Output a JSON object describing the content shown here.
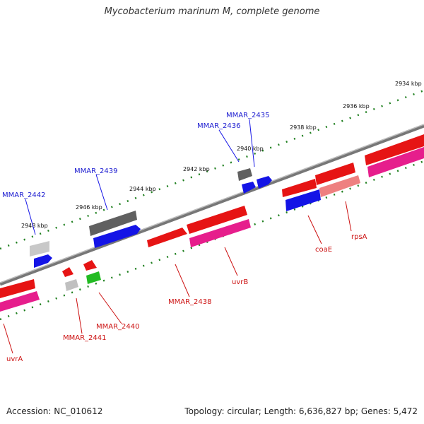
{
  "header": {
    "title": "Mycobacterium marinum M, complete genome"
  },
  "footer": {
    "accession": "Accession: NC_010612",
    "topology": "Topology: circular; Length: 6,636,827 bp; Genes: 5,472"
  },
  "scale": {
    "ticks": [
      "2934 kbp",
      "2936 kbp",
      "2938 kbp",
      "2940 kbp",
      "2942 kbp",
      "2944 kbp",
      "2946 kbp",
      "2948 kbp"
    ]
  },
  "genes": {
    "top": [
      "MMAR_2435",
      "MMAR_2436",
      "MMAR_2439",
      "MMAR_2442"
    ],
    "bottom": [
      "rpsA",
      "coaE",
      "uvrB",
      "MMAR_2438",
      "MMAR_2440",
      "MMAR_2441",
      "uvrA"
    ]
  },
  "colors": {
    "blue": "#1414e6",
    "red": "#e61414",
    "pink": "#e61e8c",
    "gray": "#888888",
    "dark_gray": "#606060",
    "light_gray": "#c0c0c0",
    "green": "#22bb22",
    "salmon": "#ee8080",
    "tick_green": "#208020"
  }
}
